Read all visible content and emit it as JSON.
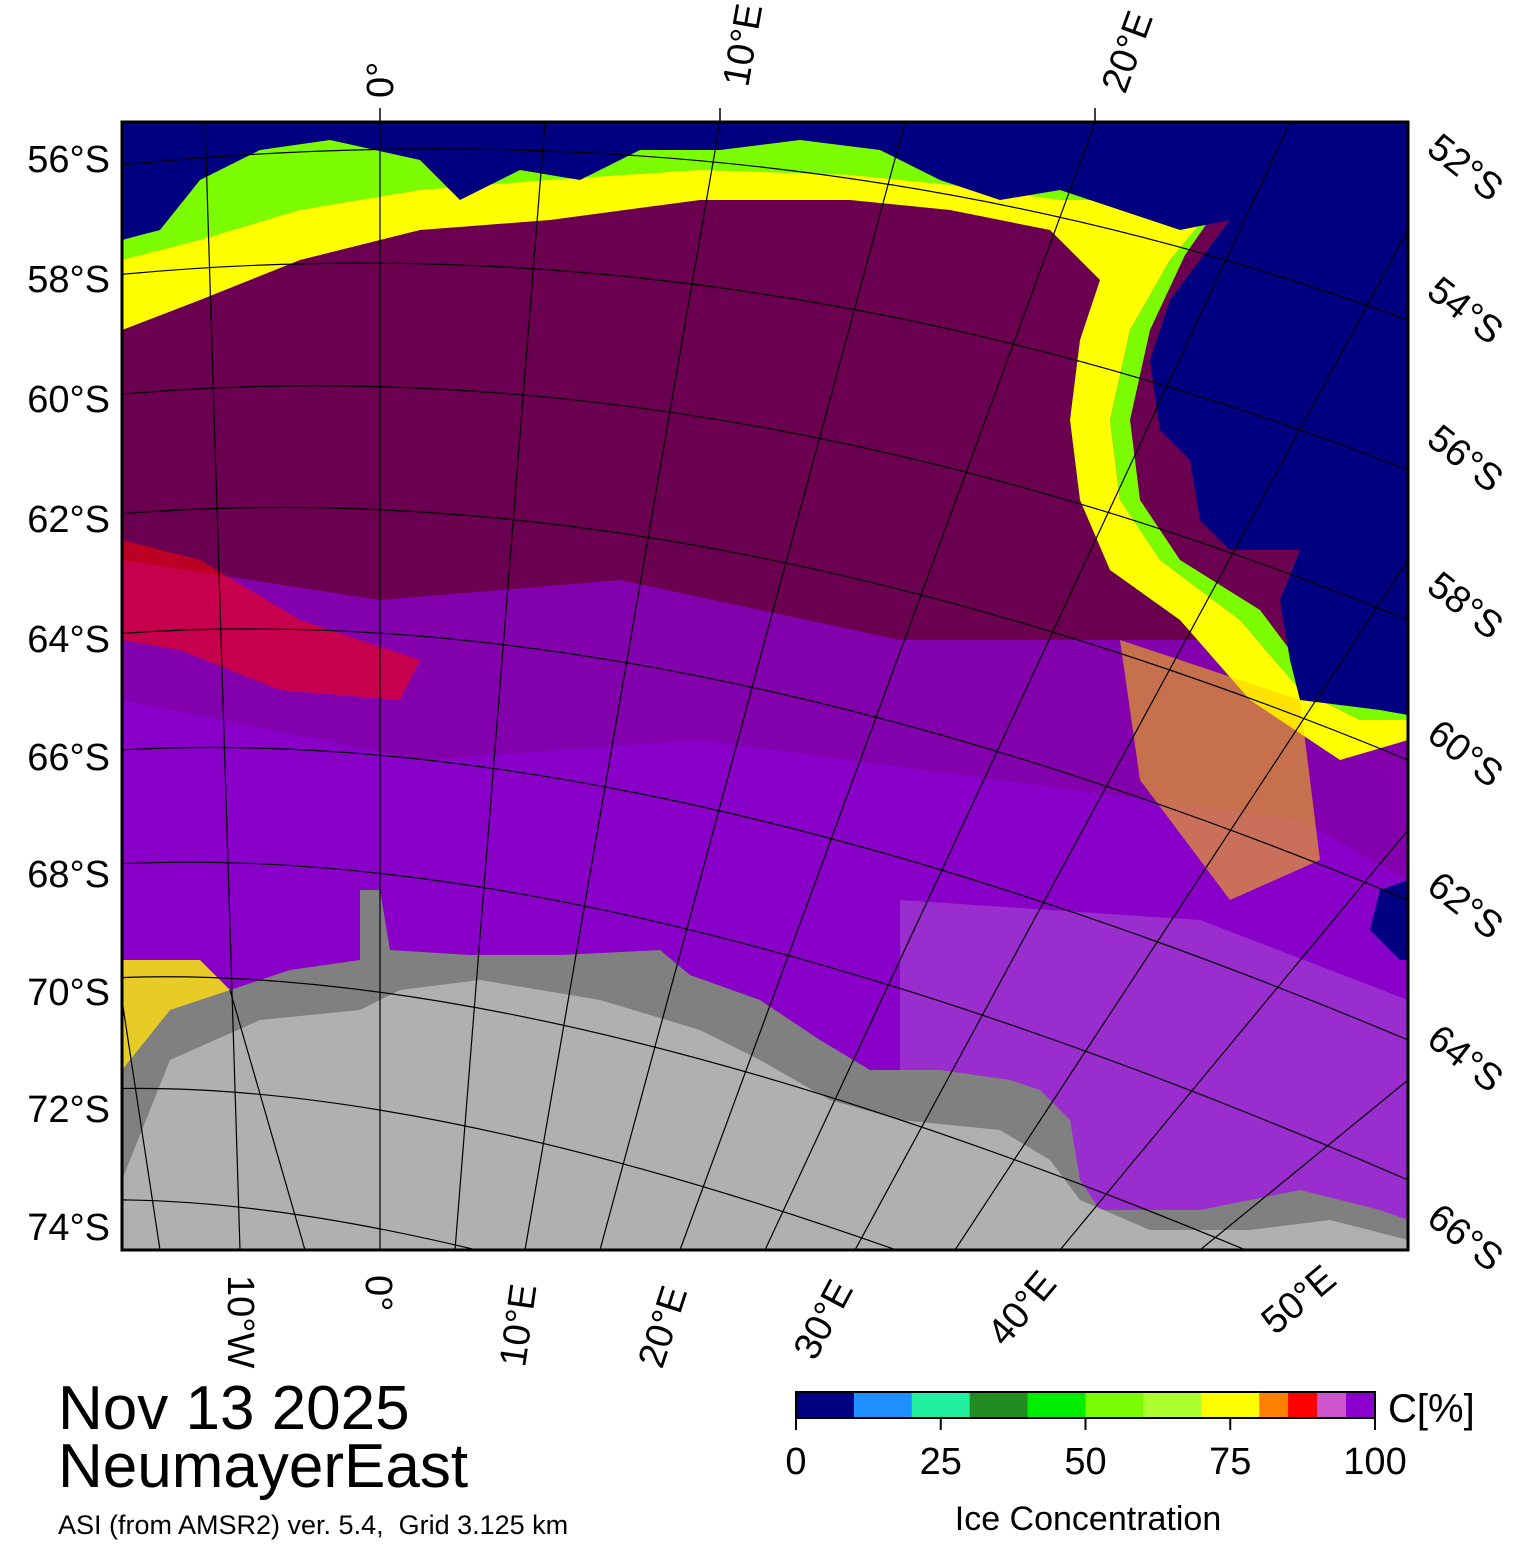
{
  "title": {
    "date": "Nov 13 2025",
    "region": "NeumayerEast",
    "source": "ASI (from AMSR2) ver. 5.4,  Grid 3.125 km"
  },
  "map": {
    "left_lat_labels": [
      "56°S",
      "58°S",
      "60°S",
      "62°S",
      "64°S",
      "66°S",
      "68°S",
      "70°S",
      "72°S",
      "74°S"
    ],
    "right_lat_labels": [
      "52°S",
      "54°S",
      "56°S",
      "58°S",
      "60°S",
      "62°S",
      "64°S",
      "66°S"
    ],
    "top_lon_labels": [
      "0°",
      "10°E",
      "20°E"
    ],
    "bottom_lon_labels": [
      "10°W",
      "0°",
      "10°E",
      "20°E",
      "30°E",
      "40°E",
      "50°E"
    ],
    "colors": {
      "open_water": "#000080",
      "land_ice_shelf": "#808080",
      "continent": "#b0b0b0",
      "ice_full": "#6b0050",
      "ice_high": "#8b00cc"
    }
  },
  "colorbar": {
    "unit_label": "C[%]",
    "title": "Ice Concentration",
    "tick_labels": [
      "0",
      "25",
      "50",
      "75",
      "100"
    ],
    "segments": [
      {
        "from": 0,
        "to": 10,
        "color": "#000080"
      },
      {
        "from": 10,
        "to": 20,
        "color": "#1e90ff"
      },
      {
        "from": 20,
        "to": 30,
        "color": "#20f0a0"
      },
      {
        "from": 30,
        "to": 40,
        "color": "#228b22"
      },
      {
        "from": 40,
        "to": 50,
        "color": "#00ee00"
      },
      {
        "from": 50,
        "to": 60,
        "color": "#7cfc00"
      },
      {
        "from": 60,
        "to": 70,
        "color": "#adff2f"
      },
      {
        "from": 70,
        "to": 80,
        "color": "#ffff00"
      },
      {
        "from": 80,
        "to": 85,
        "color": "#ff8000"
      },
      {
        "from": 85,
        "to": 90,
        "color": "#ff0000"
      },
      {
        "from": 90,
        "to": 95,
        "color": "#cc55cc"
      },
      {
        "from": 95,
        "to": 100,
        "color": "#8b00cc"
      }
    ]
  }
}
